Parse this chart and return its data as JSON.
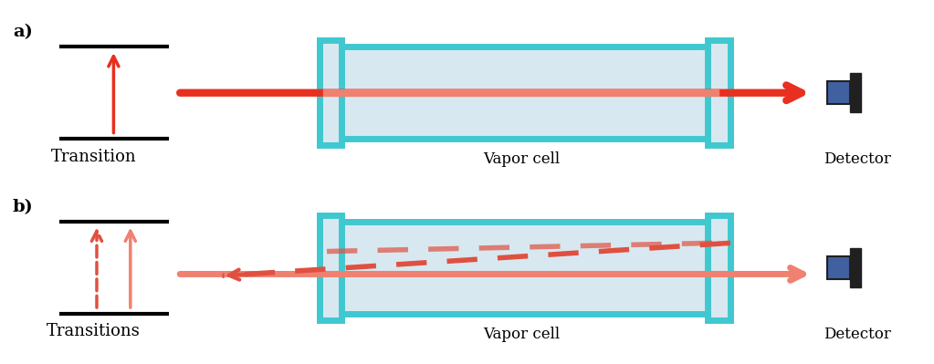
{
  "fig_width": 10.23,
  "fig_height": 3.99,
  "bg_color": "#ffffff",
  "red_solid": "#e83020",
  "red_light": "#f08070",
  "red_dashed": "#e05040",
  "cyan_cell": "#40c8d0",
  "cell_fill": "#d8e8f0",
  "detector_blue": "#4060a0",
  "detector_dark": "#202020",
  "label_a": "a)",
  "label_b": "b)",
  "text_transition": "Transition",
  "text_transitions": "Transitions",
  "text_vapor_cell": "Vapor cell",
  "text_detector": "Detector"
}
